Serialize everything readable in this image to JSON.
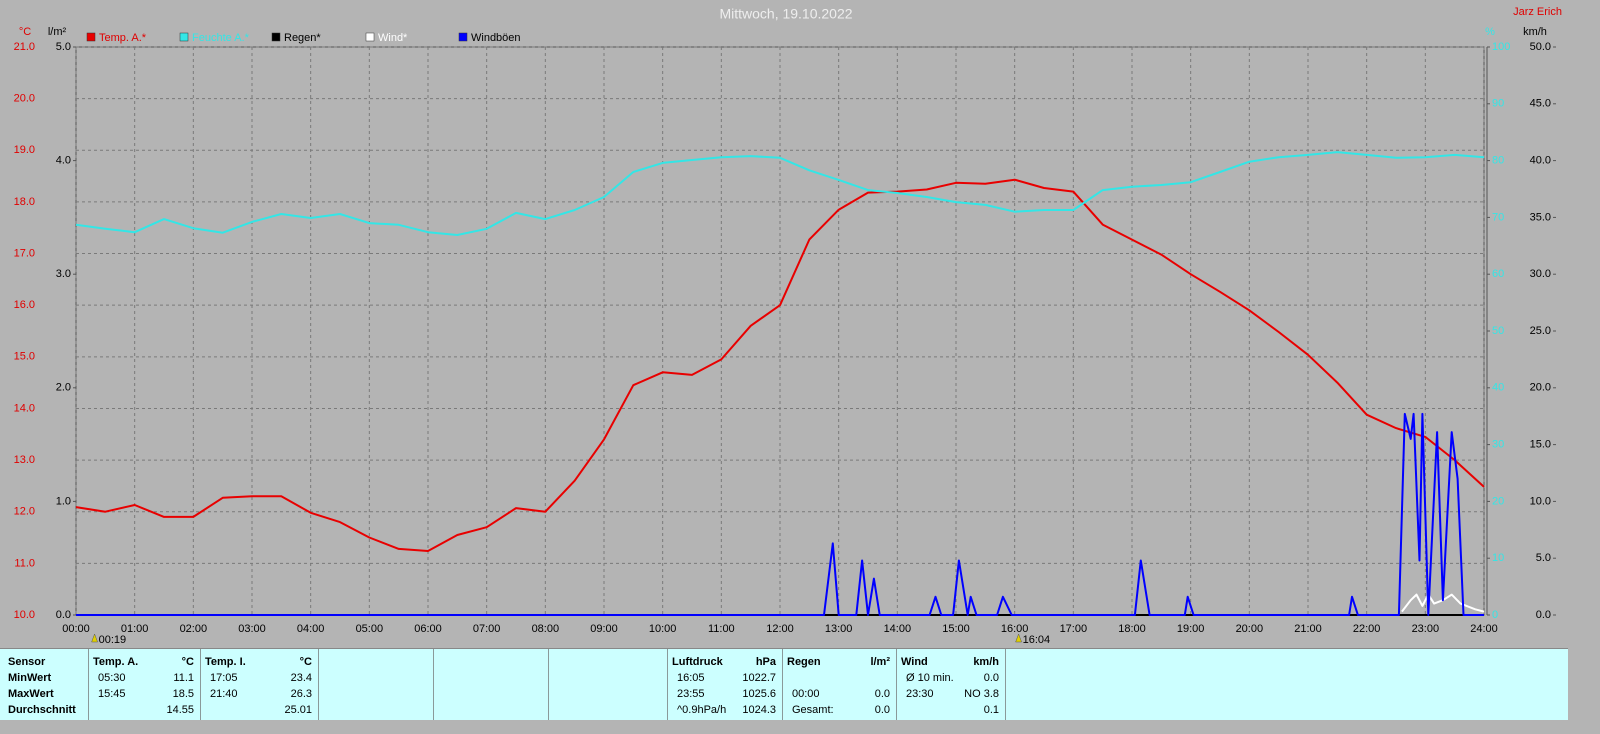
{
  "chart_data": {
    "type": "line",
    "title": "Mittwoch, 19.10.2022",
    "author": "Jarz Erich",
    "y_label": "°C",
    "y2_label": "km/h",
    "y3_label": "%",
    "y4_label": "l/m²",
    "xlim": [
      0,
      24
    ],
    "xticks": [
      {
        "value": 0,
        "label": "00:00"
      },
      {
        "value": 1,
        "label": "01:00"
      },
      {
        "value": 2,
        "label": "02:00"
      },
      {
        "value": 3,
        "label": "03:00"
      },
      {
        "value": 4,
        "label": "04:00"
      },
      {
        "value": 5,
        "label": "05:00"
      },
      {
        "value": 6,
        "label": "06:00"
      },
      {
        "value": 7,
        "label": "07:00"
      },
      {
        "value": 8,
        "label": "08:00"
      },
      {
        "value": 9,
        "label": "09:00"
      },
      {
        "value": 10,
        "label": "10:00"
      },
      {
        "value": 11,
        "label": "11:00"
      },
      {
        "value": 12,
        "label": "12:00"
      },
      {
        "value": 13,
        "label": "13:00"
      },
      {
        "value": 14,
        "label": "14:00"
      },
      {
        "value": 15,
        "label": "15:00"
      },
      {
        "value": 16,
        "label": "16:00"
      },
      {
        "value": 17,
        "label": "17:00"
      },
      {
        "value": 18,
        "label": "18:00"
      },
      {
        "value": 19,
        "label": "19:00"
      },
      {
        "value": 20,
        "label": "20:00"
      },
      {
        "value": 21,
        "label": "21:00"
      },
      {
        "value": 22,
        "label": "22:00"
      },
      {
        "value": 23,
        "label": "23:00"
      },
      {
        "value": 24,
        "label": "24:00"
      }
    ],
    "ylim": [
      10,
      21
    ],
    "yticks": [
      {
        "value": 10,
        "label": "10.0"
      },
      {
        "value": 11,
        "label": "11.0"
      },
      {
        "value": 12,
        "label": "12.0"
      },
      {
        "value": 13,
        "label": "13.0"
      },
      {
        "value": 14,
        "label": "14.0"
      },
      {
        "value": 15,
        "label": "15.0"
      },
      {
        "value": 16,
        "label": "16.0"
      },
      {
        "value": 17,
        "label": "17.0"
      },
      {
        "value": 18,
        "label": "18.0"
      },
      {
        "value": 19,
        "label": "19.0"
      },
      {
        "value": 20,
        "label": "20.0"
      },
      {
        "value": 21,
        "label": "21.0"
      }
    ],
    "y2lim": [
      0,
      50
    ],
    "y2ticks": [
      {
        "value": 0,
        "label": "0.0"
      },
      {
        "value": 5,
        "label": "5.0"
      },
      {
        "value": 10,
        "label": "10.0"
      },
      {
        "value": 15,
        "label": "15.0"
      },
      {
        "value": 20,
        "label": "20.0"
      },
      {
        "value": 25,
        "label": "25.0"
      },
      {
        "value": 30,
        "label": "30.0"
      },
      {
        "value": 35,
        "label": "35.0"
      },
      {
        "value": 40,
        "label": "40.0"
      },
      {
        "value": 45,
        "label": "45.0"
      },
      {
        "value": 50,
        "label": "50.0"
      }
    ],
    "y3lim": [
      0,
      100
    ],
    "y3ticks": [
      0,
      10,
      20,
      30,
      40,
      50,
      60,
      70,
      80,
      90,
      100
    ],
    "y4lim": [
      0,
      5
    ],
    "y4ticks": [
      {
        "value": 0,
        "label": "0.0"
      },
      {
        "value": 1,
        "label": "1.0"
      },
      {
        "value": 2,
        "label": "2.0"
      },
      {
        "value": 3,
        "label": "3.0"
      },
      {
        "value": 4,
        "label": "4.0"
      },
      {
        "value": 5,
        "label": "5.0"
      }
    ],
    "grid": true,
    "x": [
      0,
      0.5,
      1,
      1.5,
      2,
      2.5,
      3,
      3.5,
      4,
      4.5,
      5,
      5.5,
      6,
      6.5,
      7,
      7.5,
      8,
      8.5,
      9,
      9.5,
      10,
      10.5,
      11,
      11.5,
      12,
      12.5,
      13,
      13.5,
      14,
      14.5,
      15,
      15.5,
      16,
      16.5,
      17,
      17.5,
      18,
      18.5,
      19,
      19.5,
      20,
      20.5,
      21,
      21.5,
      22,
      22.5,
      23,
      23.5,
      24
    ],
    "series": [
      {
        "name": "Temp. A.*",
        "color": "#e80000",
        "axis": "y",
        "values": [
          12.09,
          12.0,
          12.13,
          11.9,
          11.9,
          12.27,
          12.3,
          12.3,
          11.98,
          11.8,
          11.5,
          11.28,
          11.24,
          11.55,
          11.7,
          12.07,
          12.0,
          12.6,
          13.4,
          14.45,
          14.7,
          14.65,
          14.95,
          15.6,
          16.0,
          17.27,
          17.85,
          18.18,
          18.2,
          18.24,
          18.37,
          18.35,
          18.43,
          18.27,
          18.2,
          17.56,
          17.27,
          16.98,
          16.6,
          16.26,
          15.9,
          15.48,
          15.04,
          14.5,
          13.88,
          13.62,
          13.45,
          13.0,
          12.48
        ]
      },
      {
        "name": "Feuchte A.*",
        "color": "#33e6e6",
        "axis": "y3",
        "values": [
          68.7,
          68,
          67.4,
          69.7,
          68.1,
          67.3,
          69.2,
          70.6,
          69.9,
          70.6,
          69,
          68.7,
          67.4,
          66.9,
          68,
          70.8,
          69.7,
          71.3,
          73.6,
          78,
          79.6,
          80.1,
          80.6,
          80.8,
          80.5,
          78.3,
          76.6,
          74.8,
          74.3,
          73.6,
          72.7,
          72.2,
          71,
          71.3,
          71.3,
          74.8,
          75.4,
          75.7,
          76.2,
          78,
          79.8,
          80.6,
          81,
          81.5,
          81,
          80.5,
          80.6,
          81,
          80.6
        ]
      },
      {
        "name": "Regen*",
        "color": "#000000",
        "axis": "y4",
        "x": [
          0,
          24
        ],
        "values": [
          0,
          0
        ]
      },
      {
        "name": "Wind*",
        "color": "#ffffff",
        "axis": "y2",
        "x": [
          22.6,
          22.75,
          22.85,
          22.95,
          23.05,
          23.15,
          23.3,
          23.45,
          23.6,
          23.85,
          24
        ],
        "values": [
          0.3,
          1.3,
          1.8,
          0.8,
          1.8,
          1.0,
          1.3,
          1.8,
          1.0,
          0.5,
          0.3
        ]
      },
      {
        "name": "Windböen",
        "color": "#0000ff",
        "axis": "y2",
        "x": [
          0,
          12.75,
          12.9,
          13.0,
          13.3,
          13.4,
          13.5,
          13.6,
          13.7,
          14.55,
          14.65,
          14.75,
          14.95,
          15.05,
          15.2,
          15.25,
          15.35,
          15.7,
          15.8,
          15.95,
          18.05,
          18.15,
          18.3,
          18.9,
          18.95,
          19.05,
          21.7,
          21.75,
          21.85,
          22.55,
          22.65,
          22.75,
          22.8,
          22.9,
          22.95,
          23.05,
          23.2,
          23.3,
          23.45,
          23.55,
          23.65,
          24
        ],
        "values": [
          0,
          0,
          6.3,
          0,
          0,
          4.8,
          0,
          3.2,
          0,
          0,
          1.6,
          0,
          0,
          4.8,
          0,
          1.6,
          0,
          0,
          1.6,
          0,
          0,
          4.8,
          0,
          0,
          1.6,
          0,
          0,
          1.6,
          0,
          0,
          17.7,
          15.5,
          17.7,
          4.8,
          17.7,
          0,
          16.1,
          1.3,
          16.1,
          12,
          0,
          0
        ]
      }
    ],
    "annotations": [
      {
        "x": 0.3167,
        "label": "00:19"
      },
      {
        "x": 16.067,
        "label": "16:04"
      }
    ]
  },
  "table": {
    "header": "Sensor",
    "row_labels": [
      "MinWert",
      "MaxWert",
      "Durchschnitt"
    ],
    "groups": [
      {
        "title": "Temp. A.",
        "unit": "°C",
        "rows": [
          [
            "05:30",
            "11.1"
          ],
          [
            "15:45",
            "18.5"
          ],
          [
            null,
            "14.55"
          ]
        ]
      },
      {
        "title": "Temp. I.",
        "unit": "°C",
        "rows": [
          [
            "17:05",
            "23.4"
          ],
          [
            "21:40",
            "26.3"
          ],
          [
            null,
            "25.01"
          ]
        ]
      },
      {
        "title": "Luftdruck",
        "unit": "hPa",
        "rows": [
          [
            "16:05",
            "1022.7"
          ],
          [
            "23:55",
            "1025.6"
          ],
          [
            "^0.9hPa/h",
            "1024.3"
          ]
        ]
      },
      {
        "title": "Regen",
        "unit": "l/m²",
        "rows": [
          [
            null,
            null
          ],
          [
            "00:00",
            "0.0"
          ],
          [
            "Gesamt:",
            "0.0"
          ]
        ]
      },
      {
        "title": "Wind",
        "unit": "km/h",
        "rows": [
          [
            "Ø 10 min.",
            "0.0"
          ],
          [
            "23:30",
            "NO 3.8"
          ],
          [
            null,
            "0.1"
          ]
        ]
      }
    ]
  }
}
